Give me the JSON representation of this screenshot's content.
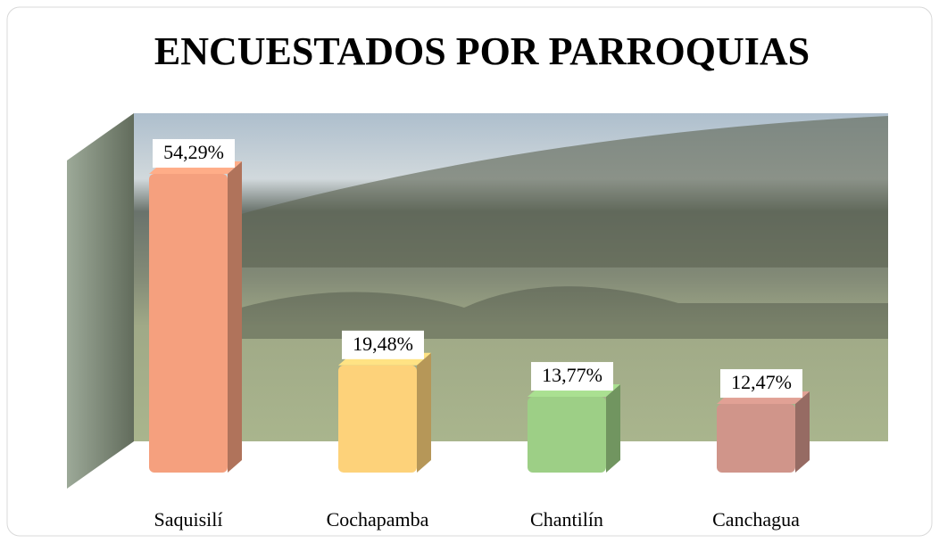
{
  "chart_data": {
    "type": "bar3d",
    "title": "ENCUESTADOS POR PARROQUIAS",
    "categories": [
      "Saquisilí",
      "Cochapamba",
      "Chantilín",
      "Canchagua"
    ],
    "values": [
      54.29,
      19.48,
      13.77,
      12.47
    ],
    "value_labels": [
      "54,29%",
      "19,48%",
      "13,77%",
      "12,47%"
    ],
    "colors": [
      "#f5a07e",
      "#fdd27a",
      "#9dcf86",
      "#d0958a"
    ]
  }
}
